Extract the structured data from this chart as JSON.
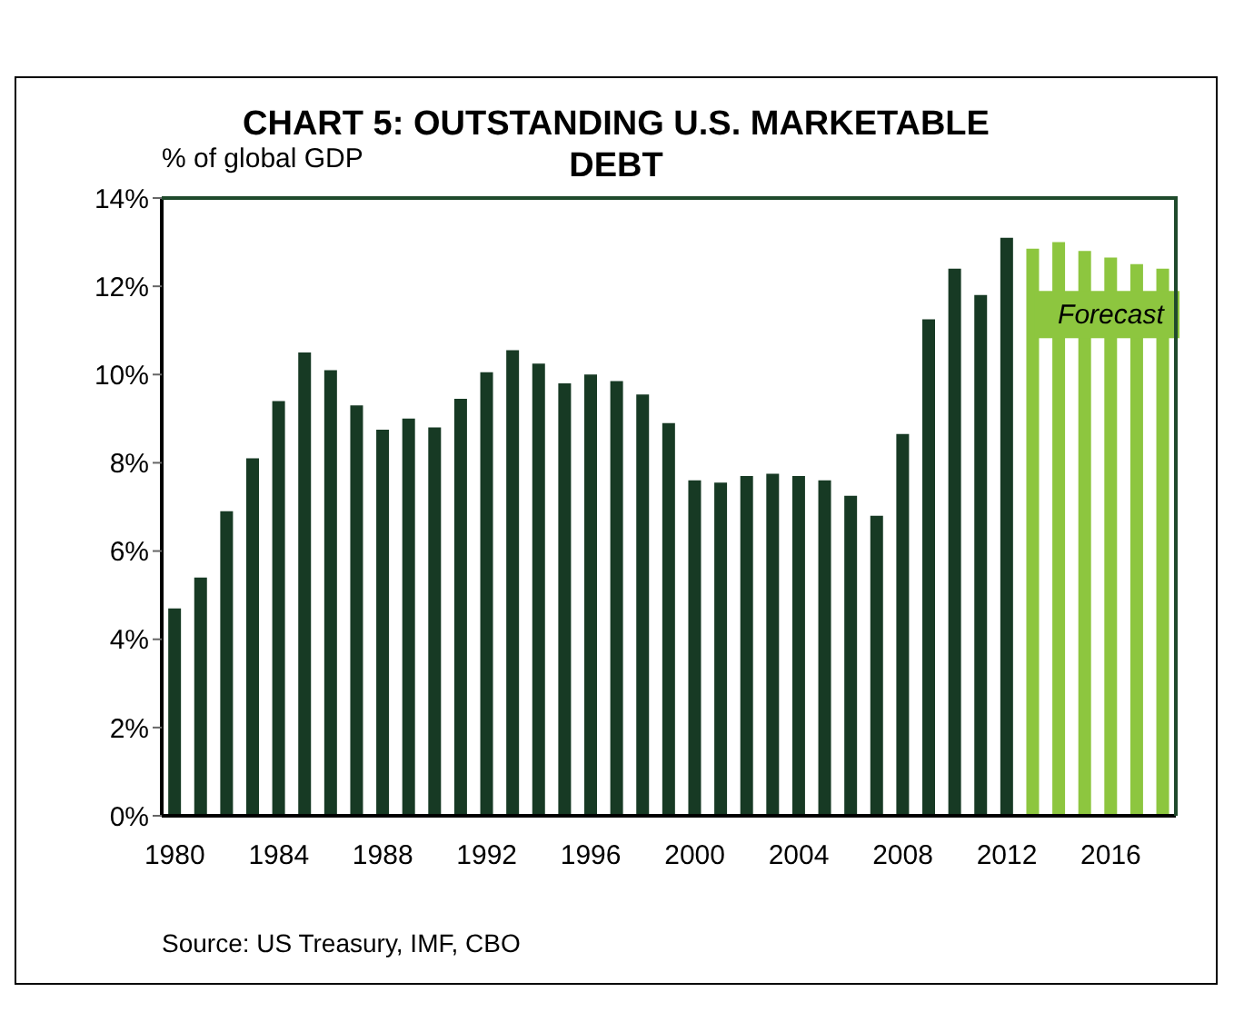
{
  "chart_data": {
    "type": "bar",
    "title": "CHART 5: OUTSTANDING U.S. MARKETABLE DEBT",
    "ylabel": "% of global GDP",
    "categories": [
      "1980",
      null,
      null,
      null,
      "1984",
      null,
      null,
      null,
      "1988",
      null,
      null,
      null,
      "1992",
      null,
      null,
      null,
      "1996",
      null,
      null,
      null,
      "2000",
      null,
      null,
      null,
      "2004",
      null,
      null,
      null,
      "2008",
      null,
      null,
      null,
      "2012",
      null,
      null,
      null,
      "2016",
      null,
      null
    ],
    "values": [
      4.7,
      5.4,
      6.9,
      8.1,
      9.4,
      10.5,
      10.1,
      9.3,
      8.75,
      9.0,
      8.8,
      9.45,
      10.05,
      10.55,
      10.25,
      9.8,
      10.0,
      9.85,
      9.55,
      8.9,
      7.6,
      7.55,
      7.7,
      7.75,
      7.7,
      7.6,
      7.25,
      6.8,
      8.65,
      11.25,
      12.4,
      11.8,
      13.1,
      12.85,
      13.0,
      12.8,
      12.65,
      12.5,
      12.4
    ],
    "colors": [
      "#173a24",
      "#173a24",
      "#173a24",
      "#173a24",
      "#173a24",
      "#173a24",
      "#173a24",
      "#173a24",
      "#173a24",
      "#173a24",
      "#173a24",
      "#173a24",
      "#173a24",
      "#173a24",
      "#173a24",
      "#173a24",
      "#173a24",
      "#173a24",
      "#173a24",
      "#173a24",
      "#173a24",
      "#173a24",
      "#173a24",
      "#173a24",
      "#173a24",
      "#173a24",
      "#173a24",
      "#173a24",
      "#173a24",
      "#173a24",
      "#173a24",
      "#173a24",
      "#173a24",
      "#8dc63f",
      "#8dc63f",
      "#8dc63f",
      "#8dc63f",
      "#8dc63f",
      "#8dc63f"
    ],
    "ylim": [
      0,
      14
    ],
    "yticks": [
      {
        "value": 0,
        "label": "0%"
      },
      {
        "value": 2,
        "label": "2%"
      },
      {
        "value": 4,
        "label": "4%"
      },
      {
        "value": 6,
        "label": "6%"
      },
      {
        "value": 8,
        "label": "8%"
      },
      {
        "value": 10,
        "label": "10%"
      },
      {
        "value": 12,
        "label": "12%"
      },
      {
        "value": 14,
        "label": "14%"
      }
    ],
    "grid": false,
    "annotations": [
      {
        "text": "Forecast",
        "x": "2016",
        "y": 11.4
      },
      "Source: US Treasury, IMF, CBO"
    ]
  }
}
